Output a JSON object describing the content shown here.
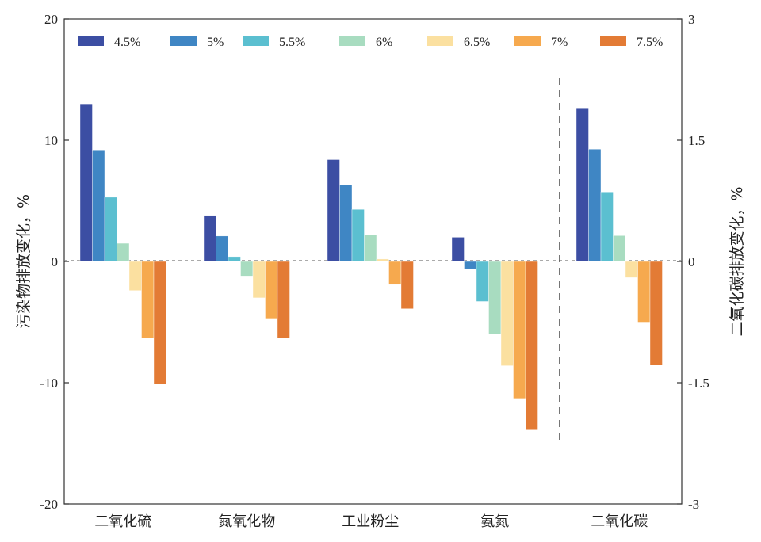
{
  "chart_data": {
    "type": "bar",
    "categories": [
      "二氧化硫",
      "氮氧化物",
      "工业粉尘",
      "氨氮",
      "二氧化碳"
    ],
    "ylabel_left": "污染物排放变化，%",
    "ylabel_right": "二氧化碳排放变化，%",
    "ylim_left": [
      -20,
      20
    ],
    "ylim_right": [
      -3,
      3
    ],
    "yticks_left": [
      "20",
      "10",
      "0",
      "-10",
      "-20"
    ],
    "yticks_right": [
      "3",
      "1.5",
      "0",
      "-1.5",
      "-3"
    ],
    "legend_position": "top",
    "grid": false,
    "right_axis_applies_to": "二氧化碳",
    "series": [
      {
        "name": "4.5%",
        "color": "#3c4ea3",
        "values": [
          13.0,
          3.8,
          8.4,
          2.0,
          1.9
        ]
      },
      {
        "name": "5%",
        "color": "#3f86c4",
        "values": [
          9.2,
          2.1,
          6.3,
          -0.6,
          1.39
        ]
      },
      {
        "name": "5.5%",
        "color": "#5bbfd0",
        "values": [
          5.3,
          0.4,
          4.3,
          -3.3,
          0.86
        ]
      },
      {
        "name": "6%",
        "color": "#a8dcc0",
        "values": [
          1.5,
          -1.2,
          2.2,
          -6.0,
          0.32
        ]
      },
      {
        "name": "6.5%",
        "color": "#fbe0a0",
        "values": [
          -2.4,
          -3.0,
          0.2,
          -8.6,
          -0.2
        ]
      },
      {
        "name": "7%",
        "color": "#f6a94e",
        "values": [
          -6.3,
          -4.7,
          -1.9,
          -11.3,
          -0.75
        ]
      },
      {
        "name": "7.5%",
        "color": "#e37b35",
        "values": [
          -10.1,
          -6.3,
          -3.9,
          -13.9,
          -1.28
        ]
      }
    ]
  }
}
